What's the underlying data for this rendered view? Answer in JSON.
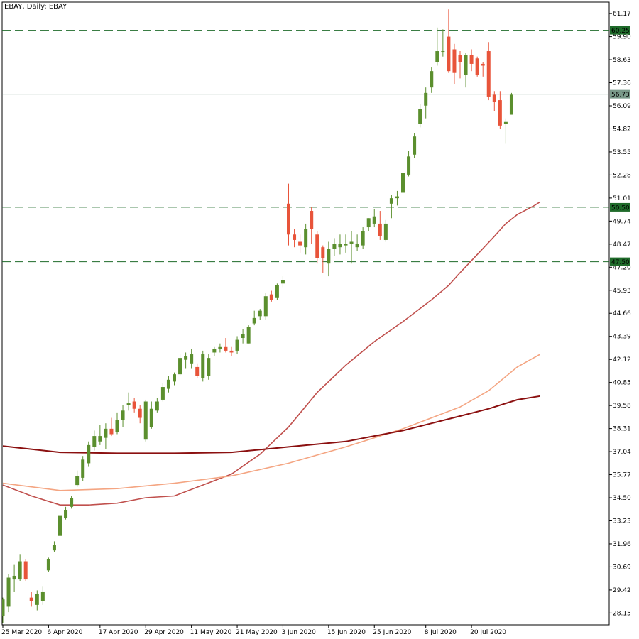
{
  "header": {
    "title": "EBAY, Daily:  EBAY"
  },
  "chart_data": {
    "type": "candlestick",
    "symbol": "EBAY",
    "timeframe": "Daily",
    "colors": {
      "up": "#5b8f2e",
      "down": "#e8543a",
      "ma_fast": "#c0504d",
      "ma_mid": "#f4a582",
      "ma_slow": "#8b1010",
      "level_line": "#1f6b2a",
      "current_price_line": "#7a9a8a",
      "axis": "#000000"
    },
    "ylim": [
      27.5,
      61.8
    ],
    "y_ticks": [
      "61.17",
      "59.90",
      "58.63",
      "57.36",
      "56.09",
      "54.82",
      "53.55",
      "52.28",
      "51.01",
      "49.74",
      "48.47",
      "47.20",
      "45.93",
      "44.66",
      "43.39",
      "42.12",
      "40.85",
      "39.58",
      "38.31",
      "37.04",
      "35.77",
      "34.50",
      "33.23",
      "31.96",
      "30.69",
      "29.42",
      "28.15"
    ],
    "x_ticks": [
      {
        "label": "25 Mar 2020",
        "index": 0
      },
      {
        "label": "6 Apr 2020",
        "index": 8
      },
      {
        "label": "17 Apr 2020",
        "index": 17
      },
      {
        "label": "29 Apr 2020",
        "index": 25
      },
      {
        "label": "11 May 2020",
        "index": 33
      },
      {
        "label": "21 May 2020",
        "index": 41
      },
      {
        "label": "3 Jun 2020",
        "index": 49
      },
      {
        "label": "15 Jun 2020",
        "index": 57
      },
      {
        "label": "25 Jun 2020",
        "index": 65
      },
      {
        "label": "8 Jul 2020",
        "index": 74
      },
      {
        "label": "20 Jul 2020",
        "index": 82
      }
    ],
    "levels": [
      {
        "value": 60.25,
        "label": "60.25"
      },
      {
        "value": 50.5,
        "label": "50.50"
      },
      {
        "value": 47.5,
        "label": "47.50"
      }
    ],
    "current_price": {
      "value": 56.73,
      "label": "56.73"
    },
    "candles": [
      {
        "o": 28.0,
        "h": 29.0,
        "l": 27.6,
        "c": 28.9
      },
      {
        "o": 28.5,
        "h": 30.3,
        "l": 28.2,
        "c": 30.1
      },
      {
        "o": 30.0,
        "h": 30.8,
        "l": 29.3,
        "c": 30.2
      },
      {
        "o": 30.0,
        "h": 31.4,
        "l": 29.9,
        "c": 31.0
      },
      {
        "o": 31.0,
        "h": 31.1,
        "l": 29.9,
        "c": 30.0
      },
      {
        "o": 29.0,
        "h": 29.3,
        "l": 28.5,
        "c": 28.8
      },
      {
        "o": 28.6,
        "h": 29.4,
        "l": 28.3,
        "c": 29.2
      },
      {
        "o": 28.8,
        "h": 29.6,
        "l": 28.6,
        "c": 29.3
      },
      {
        "o": 30.5,
        "h": 31.2,
        "l": 30.4,
        "c": 31.1
      },
      {
        "o": 31.6,
        "h": 32.1,
        "l": 31.5,
        "c": 31.9
      },
      {
        "o": 32.4,
        "h": 33.8,
        "l": 32.1,
        "c": 33.5
      },
      {
        "o": 33.4,
        "h": 34.0,
        "l": 33.3,
        "c": 33.8
      },
      {
        "o": 34.0,
        "h": 34.6,
        "l": 33.9,
        "c": 34.5
      },
      {
        "o": 35.2,
        "h": 36.0,
        "l": 35.1,
        "c": 35.7
      },
      {
        "o": 35.6,
        "h": 36.8,
        "l": 35.4,
        "c": 36.6
      },
      {
        "o": 36.4,
        "h": 37.6,
        "l": 36.2,
        "c": 37.4
      },
      {
        "o": 37.3,
        "h": 38.2,
        "l": 37.1,
        "c": 37.9
      },
      {
        "o": 37.6,
        "h": 38.5,
        "l": 37.4,
        "c": 37.9
      },
      {
        "o": 37.8,
        "h": 38.6,
        "l": 37.2,
        "c": 38.3
      },
      {
        "o": 38.3,
        "h": 38.9,
        "l": 37.9,
        "c": 38.0
      },
      {
        "o": 38.1,
        "h": 39.2,
        "l": 38.0,
        "c": 38.8
      },
      {
        "o": 38.8,
        "h": 39.6,
        "l": 38.4,
        "c": 39.3
      },
      {
        "o": 39.6,
        "h": 40.3,
        "l": 39.3,
        "c": 39.7
      },
      {
        "o": 39.8,
        "h": 40.0,
        "l": 39.2,
        "c": 39.4
      },
      {
        "o": 39.4,
        "h": 39.6,
        "l": 38.6,
        "c": 38.9
      },
      {
        "o": 37.7,
        "h": 39.9,
        "l": 37.6,
        "c": 39.8
      },
      {
        "o": 38.4,
        "h": 39.8,
        "l": 38.3,
        "c": 39.4
      },
      {
        "o": 39.3,
        "h": 40.0,
        "l": 39.2,
        "c": 39.8
      },
      {
        "o": 39.9,
        "h": 40.8,
        "l": 39.8,
        "c": 40.6
      },
      {
        "o": 40.5,
        "h": 41.2,
        "l": 40.3,
        "c": 41.0
      },
      {
        "o": 40.9,
        "h": 41.4,
        "l": 40.7,
        "c": 41.3
      },
      {
        "o": 41.3,
        "h": 42.4,
        "l": 41.2,
        "c": 42.2
      },
      {
        "o": 42.1,
        "h": 42.5,
        "l": 41.6,
        "c": 42.3
      },
      {
        "o": 41.9,
        "h": 42.7,
        "l": 41.6,
        "c": 42.4
      },
      {
        "o": 41.7,
        "h": 41.9,
        "l": 41.1,
        "c": 41.2
      },
      {
        "o": 41.1,
        "h": 42.6,
        "l": 40.9,
        "c": 42.4
      },
      {
        "o": 41.2,
        "h": 42.4,
        "l": 41.0,
        "c": 42.2
      },
      {
        "o": 42.5,
        "h": 42.8,
        "l": 42.3,
        "c": 42.7
      },
      {
        "o": 42.7,
        "h": 43.0,
        "l": 42.5,
        "c": 42.8
      },
      {
        "o": 42.8,
        "h": 43.3,
        "l": 42.5,
        "c": 42.6
      },
      {
        "o": 42.6,
        "h": 42.8,
        "l": 42.3,
        "c": 42.5
      },
      {
        "o": 42.6,
        "h": 43.4,
        "l": 42.4,
        "c": 43.2
      },
      {
        "o": 43.3,
        "h": 43.8,
        "l": 43.0,
        "c": 43.5
      },
      {
        "o": 43.0,
        "h": 44.0,
        "l": 43.0,
        "c": 43.9
      },
      {
        "o": 44.1,
        "h": 44.8,
        "l": 44.0,
        "c": 44.4
      },
      {
        "o": 44.5,
        "h": 44.9,
        "l": 44.3,
        "c": 44.8
      },
      {
        "o": 44.5,
        "h": 45.8,
        "l": 44.3,
        "c": 45.6
      },
      {
        "o": 45.7,
        "h": 45.9,
        "l": 45.3,
        "c": 45.4
      },
      {
        "o": 45.5,
        "h": 46.3,
        "l": 45.4,
        "c": 46.2
      },
      {
        "o": 46.3,
        "h": 46.7,
        "l": 46.1,
        "c": 46.5
      },
      {
        "o": 50.7,
        "h": 51.8,
        "l": 48.4,
        "c": 49.0
      },
      {
        "o": 49.0,
        "h": 49.3,
        "l": 48.3,
        "c": 48.7
      },
      {
        "o": 48.6,
        "h": 49.0,
        "l": 48.0,
        "c": 48.4
      },
      {
        "o": 48.3,
        "h": 49.6,
        "l": 47.9,
        "c": 49.3
      },
      {
        "o": 50.3,
        "h": 50.5,
        "l": 48.5,
        "c": 49.3
      },
      {
        "o": 49.0,
        "h": 49.2,
        "l": 47.4,
        "c": 47.7
      },
      {
        "o": 48.3,
        "h": 48.4,
        "l": 46.9,
        "c": 47.7
      },
      {
        "o": 47.4,
        "h": 48.6,
        "l": 46.7,
        "c": 48.2
      },
      {
        "o": 48.2,
        "h": 48.8,
        "l": 47.8,
        "c": 48.5
      },
      {
        "o": 48.3,
        "h": 49.0,
        "l": 47.9,
        "c": 48.5
      },
      {
        "o": 48.4,
        "h": 49.0,
        "l": 48.0,
        "c": 48.5
      },
      {
        "o": 48.5,
        "h": 49.2,
        "l": 47.4,
        "c": 48.6
      },
      {
        "o": 48.3,
        "h": 49.0,
        "l": 48.1,
        "c": 48.5
      },
      {
        "o": 48.4,
        "h": 49.4,
        "l": 48.2,
        "c": 49.2
      },
      {
        "o": 49.4,
        "h": 49.9,
        "l": 49.2,
        "c": 49.9
      },
      {
        "o": 49.6,
        "h": 50.4,
        "l": 49.4,
        "c": 50.0
      },
      {
        "o": 49.6,
        "h": 50.3,
        "l": 48.7,
        "c": 48.9
      },
      {
        "o": 48.7,
        "h": 49.8,
        "l": 48.6,
        "c": 49.6
      },
      {
        "o": 50.7,
        "h": 51.2,
        "l": 49.9,
        "c": 51.0
      },
      {
        "o": 51.0,
        "h": 51.4,
        "l": 50.6,
        "c": 51.1
      },
      {
        "o": 51.3,
        "h": 52.5,
        "l": 51.2,
        "c": 52.4
      },
      {
        "o": 52.3,
        "h": 53.6,
        "l": 52.2,
        "c": 53.3
      },
      {
        "o": 53.4,
        "h": 54.6,
        "l": 53.2,
        "c": 54.4
      },
      {
        "o": 55.1,
        "h": 56.2,
        "l": 54.9,
        "c": 55.9
      },
      {
        "o": 56.1,
        "h": 57.1,
        "l": 55.4,
        "c": 56.8
      },
      {
        "o": 57.1,
        "h": 58.2,
        "l": 56.8,
        "c": 58.0
      },
      {
        "o": 58.5,
        "h": 60.4,
        "l": 58.3,
        "c": 59.1
      },
      {
        "o": 59.1,
        "h": 60.3,
        "l": 58.8,
        "c": 59.1
      },
      {
        "o": 59.9,
        "h": 61.4,
        "l": 57.9,
        "c": 58.0
      },
      {
        "o": 59.2,
        "h": 59.5,
        "l": 57.3,
        "c": 57.9
      },
      {
        "o": 58.9,
        "h": 59.1,
        "l": 57.6,
        "c": 58.5
      },
      {
        "o": 57.8,
        "h": 59.0,
        "l": 57.1,
        "c": 58.9
      },
      {
        "o": 58.9,
        "h": 59.2,
        "l": 58.0,
        "c": 58.4
      },
      {
        "o": 58.7,
        "h": 58.8,
        "l": 57.7,
        "c": 57.8
      },
      {
        "o": 58.4,
        "h": 58.5,
        "l": 57.7,
        "c": 58.3
      },
      {
        "o": 59.1,
        "h": 59.6,
        "l": 56.4,
        "c": 56.6
      },
      {
        "o": 56.7,
        "h": 56.9,
        "l": 55.8,
        "c": 56.3
      },
      {
        "o": 56.4,
        "h": 56.9,
        "l": 54.8,
        "c": 55.0
      },
      {
        "o": 55.1,
        "h": 55.4,
        "l": 54.0,
        "c": 55.2
      },
      {
        "o": 55.6,
        "h": 56.8,
        "l": 55.6,
        "c": 56.7
      }
    ],
    "moving_averages": [
      {
        "color_key": "ma_fast",
        "points": [
          [
            0,
            35.2
          ],
          [
            5,
            34.6
          ],
          [
            10,
            34.1
          ],
          [
            15,
            34.1
          ],
          [
            20,
            34.2
          ],
          [
            25,
            34.5
          ],
          [
            30,
            34.6
          ],
          [
            35,
            35.2
          ],
          [
            40,
            35.8
          ],
          [
            45,
            36.9
          ],
          [
            50,
            38.4
          ],
          [
            55,
            40.3
          ],
          [
            60,
            41.8
          ],
          [
            65,
            43.1
          ],
          [
            70,
            44.2
          ],
          [
            75,
            45.4
          ],
          [
            78,
            46.2
          ],
          [
            80,
            46.9
          ],
          [
            83,
            47.9
          ],
          [
            86,
            48.9
          ],
          [
            88,
            49.6
          ],
          [
            90,
            50.1
          ],
          [
            93,
            50.6
          ],
          [
            94,
            50.8
          ]
        ]
      },
      {
        "color_key": "ma_mid",
        "points": [
          [
            0,
            35.3
          ],
          [
            10,
            34.9
          ],
          [
            20,
            35.0
          ],
          [
            30,
            35.3
          ],
          [
            40,
            35.7
          ],
          [
            50,
            36.4
          ],
          [
            60,
            37.3
          ],
          [
            70,
            38.3
          ],
          [
            80,
            39.5
          ],
          [
            85,
            40.4
          ],
          [
            90,
            41.7
          ],
          [
            94,
            42.4
          ]
        ]
      },
      {
        "color_key": "ma_slow",
        "points": [
          [
            0,
            37.35
          ],
          [
            10,
            37.0
          ],
          [
            20,
            36.95
          ],
          [
            30,
            36.95
          ],
          [
            40,
            37.0
          ],
          [
            50,
            37.3
          ],
          [
            60,
            37.6
          ],
          [
            70,
            38.2
          ],
          [
            75,
            38.6
          ],
          [
            80,
            39.0
          ],
          [
            85,
            39.4
          ],
          [
            90,
            39.9
          ],
          [
            94,
            40.1
          ]
        ]
      }
    ]
  }
}
